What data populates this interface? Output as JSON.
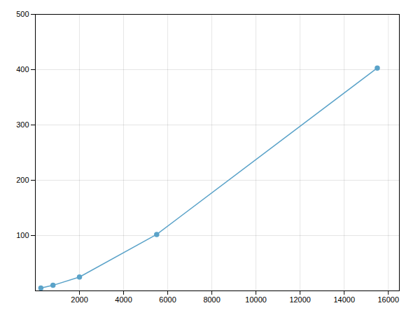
{
  "chart_data": {
    "type": "line",
    "x": [
      250,
      800,
      2000,
      5500,
      15500
    ],
    "values": [
      5,
      10,
      25,
      102,
      403
    ],
    "color": "#5ba3c9",
    "marker": "circle",
    "xlim": [
      0,
      16500
    ],
    "ylim": [
      0,
      500
    ],
    "xticks": [
      2000,
      4000,
      6000,
      8000,
      10000,
      12000,
      14000,
      16000
    ],
    "yticks": [
      100,
      200,
      300,
      400,
      500
    ],
    "grid": true
  }
}
